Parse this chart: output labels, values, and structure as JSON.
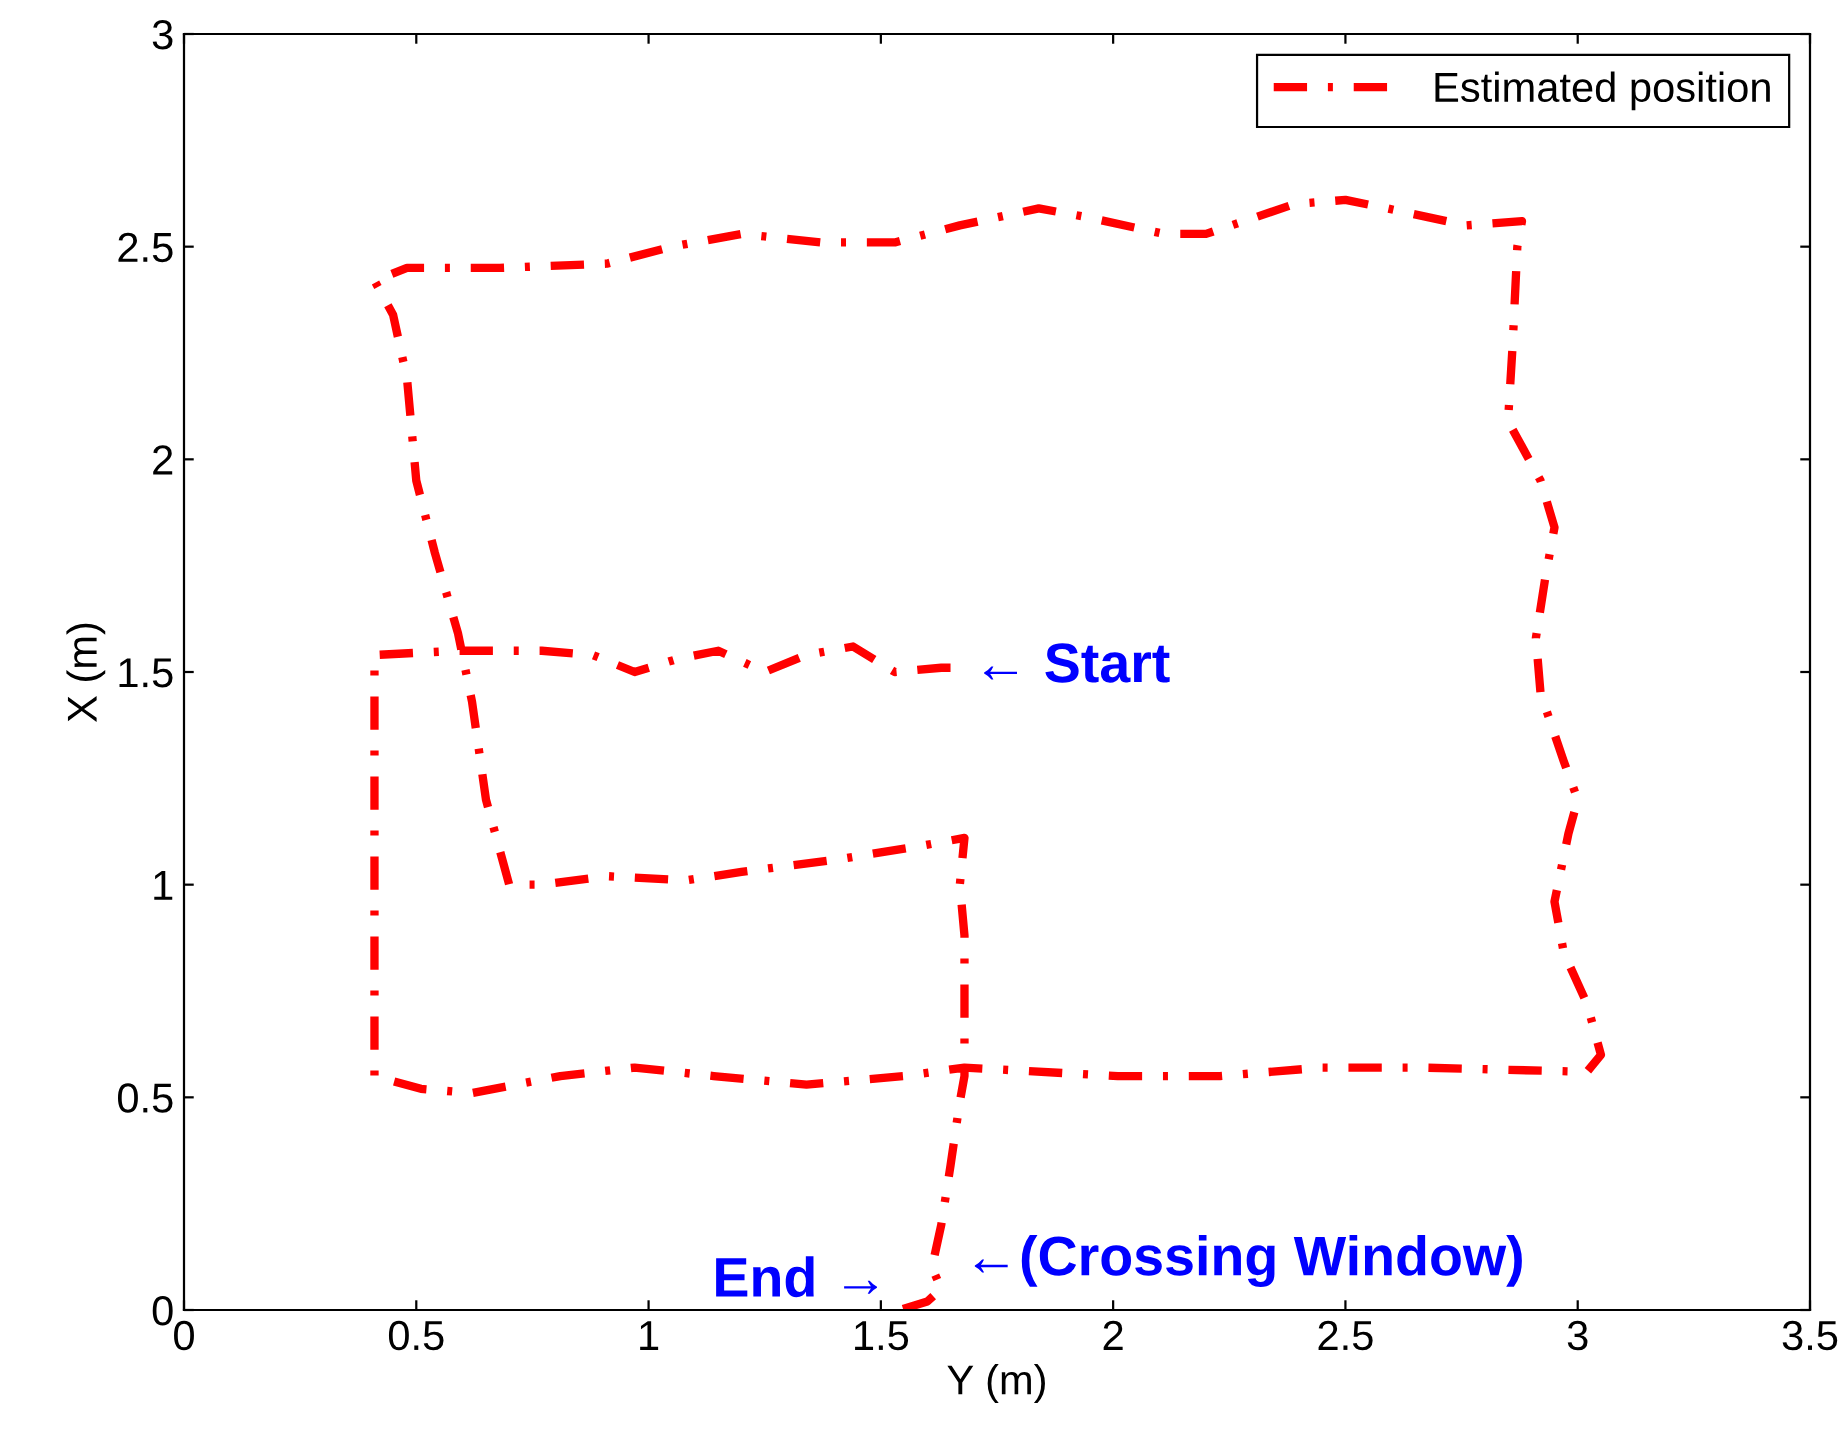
{
  "chart_data": {
    "type": "line",
    "xlabel": "Y (m)",
    "ylabel": "X (m)",
    "xlim": [
      0,
      3.5
    ],
    "ylim": [
      0,
      3
    ],
    "xticks": [
      0,
      0.5,
      1,
      1.5,
      2,
      2.5,
      3,
      3.5
    ],
    "yticks": [
      0,
      0.5,
      1,
      1.5,
      2,
      2.5,
      3
    ],
    "grid": false,
    "legend": "top right",
    "line_style": "dashdot",
    "marker": "none",
    "series": [
      {
        "name": "Estimated position",
        "color": "#ff0000",
        "x": [
          1.65,
          1.63,
          1.53,
          1.44,
          1.34,
          1.25,
          1.15,
          1.06,
          0.97,
          0.88,
          0.77,
          0.59,
          0.41,
          0.41,
          0.51,
          0.62,
          0.81,
          0.97,
          1.14,
          1.34,
          1.55,
          1.68,
          2.01,
          2.23,
          2.45,
          2.66,
          3.02,
          3.05,
          3.02,
          2.97,
          2.95,
          2.98,
          3.0,
          2.97,
          2.92,
          2.91,
          2.93,
          2.95,
          2.92,
          2.85,
          2.86,
          2.87,
          2.88,
          2.76,
          2.59,
          2.5,
          2.39,
          2.2,
          2.11,
          1.94,
          1.84,
          1.67,
          1.53,
          1.37,
          1.2,
          1.05,
          0.91,
          0.68,
          0.48,
          0.41,
          0.45,
          0.48,
          0.5,
          0.54,
          0.59,
          0.62,
          0.65,
          0.7,
          0.77,
          0.91,
          1.08,
          1.2,
          1.41,
          1.58,
          1.68,
          1.67,
          1.68,
          1.68,
          1.68,
          1.67,
          1.65,
          1.63,
          1.61,
          1.63,
          1.6,
          1.54
        ],
        "values": [
          1.51,
          1.51,
          1.5,
          1.56,
          1.54,
          1.5,
          1.55,
          1.53,
          1.5,
          1.54,
          1.55,
          1.55,
          1.54,
          0.55,
          0.52,
          0.51,
          0.55,
          0.57,
          0.55,
          0.53,
          0.55,
          0.57,
          0.55,
          0.55,
          0.57,
          0.57,
          0.56,
          0.6,
          0.72,
          0.84,
          0.96,
          1.12,
          1.2,
          1.29,
          1.45,
          1.58,
          1.72,
          1.84,
          1.95,
          2.09,
          2.27,
          2.5,
          2.56,
          2.55,
          2.59,
          2.61,
          2.6,
          2.53,
          2.53,
          2.57,
          2.59,
          2.55,
          2.51,
          2.51,
          2.53,
          2.5,
          2.46,
          2.45,
          2.45,
          2.42,
          2.34,
          2.19,
          1.95,
          1.78,
          1.59,
          1.43,
          1.2,
          1.0,
          1.0,
          1.02,
          1.01,
          1.03,
          1.06,
          1.09,
          1.11,
          1.0,
          0.88,
          0.67,
          0.55,
          0.49,
          0.34,
          0.2,
          0.1,
          0.05,
          0.02,
          0.0
        ]
      }
    ],
    "annotations": [
      {
        "text": "← Start",
        "x": 1.65,
        "y": 1.51
      },
      {
        "text": "End →",
        "x": 1.54,
        "y": 0.0
      },
      {
        "text": "←(Crossing Window)",
        "x": 1.63,
        "y": 0.05
      }
    ]
  }
}
